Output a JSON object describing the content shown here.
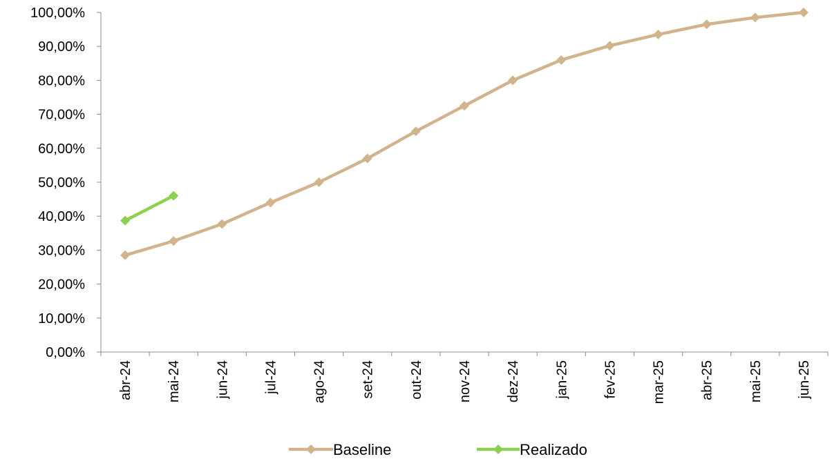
{
  "chart_data": {
    "type": "line",
    "title": "",
    "xlabel": "",
    "ylabel": "",
    "categories": [
      "abr-24",
      "mai-24",
      "jun-24",
      "jul-24",
      "ago-24",
      "set-24",
      "out-24",
      "nov-24",
      "dez-24",
      "jan-25",
      "fev-25",
      "mar-25",
      "abr-25",
      "mai-25",
      "jun-25"
    ],
    "ylim": [
      0,
      100
    ],
    "y_ticks": [
      "0,00%",
      "10,00%",
      "20,00%",
      "30,00%",
      "40,00%",
      "50,00%",
      "60,00%",
      "70,00%",
      "80,00%",
      "90,00%",
      "100,00%"
    ],
    "grid": false,
    "legend_position": "bottom",
    "series": [
      {
        "name": "Baseline",
        "color": "#D2B48C",
        "marker": "diamond",
        "values": [
          28.5,
          32.7,
          37.7,
          44.0,
          50.0,
          57.0,
          65.0,
          72.5,
          80.0,
          86.0,
          90.2,
          93.5,
          96.5,
          98.5,
          100.0
        ]
      },
      {
        "name": "Realizado",
        "color": "#8CD04F",
        "marker": "diamond",
        "values": [
          38.7,
          46.0,
          null,
          null,
          null,
          null,
          null,
          null,
          null,
          null,
          null,
          null,
          null,
          null,
          null
        ]
      }
    ]
  }
}
